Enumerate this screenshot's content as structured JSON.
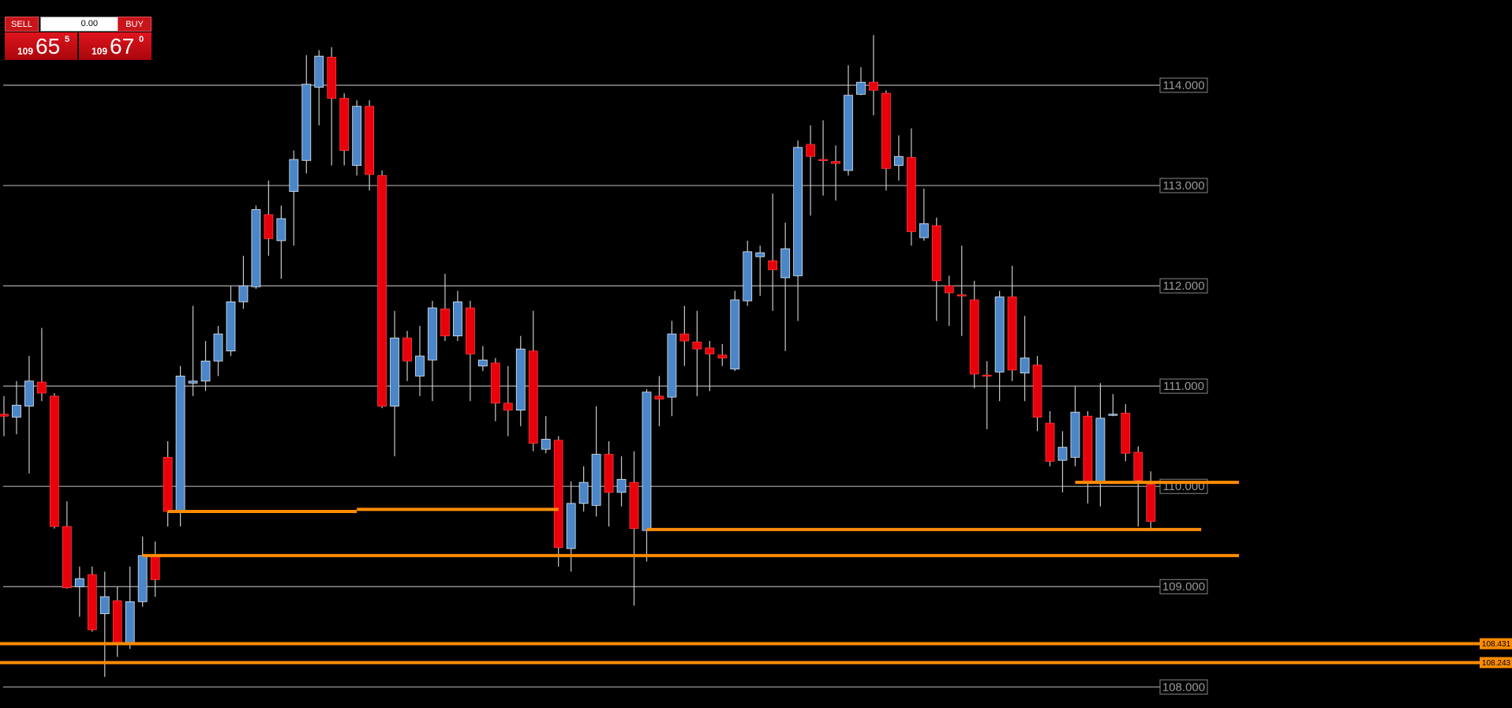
{
  "trade_panel": {
    "sell": "SELL",
    "buy": "BUY",
    "volume": "0.00",
    "bid": {
      "big": "109",
      "main": "65",
      "small": "5"
    },
    "ask": {
      "big": "109",
      "main": "67",
      "small": "0"
    }
  },
  "chart_data": {
    "type": "candlestick",
    "up_color": "#4a86c8",
    "down_color": "#e8000b",
    "wick_color": "#c8c8c8",
    "level_color": "#ff8c00",
    "grid": true,
    "ylim": [
      107.79,
      114.85
    ],
    "yticks": [
      {
        "value": 108,
        "label": "108.000"
      },
      {
        "value": 109,
        "label": "109.000"
      },
      {
        "value": 110,
        "label": "110.000"
      },
      {
        "value": 111,
        "label": "111.000"
      },
      {
        "value": 112,
        "label": "112.000"
      },
      {
        "value": 113,
        "label": "113.000"
      },
      {
        "value": 114,
        "label": "114.000"
      }
    ],
    "open": [
      110.72,
      110.69,
      110.8,
      111.04,
      110.9,
      109.6,
      109.0,
      109.12,
      108.73,
      108.86,
      108.43,
      108.85,
      109.3,
      110.29,
      109.75,
      111.03,
      111.05,
      111.25,
      111.35,
      111.84,
      111.99,
      112.71,
      112.45,
      112.94,
      113.25,
      113.98,
      114.28,
      113.87,
      113.2,
      113.79,
      113.1,
      110.8,
      111.48,
      111.1,
      111.26,
      111.77,
      111.5,
      111.78,
      111.2,
      111.23,
      110.83,
      110.76,
      111.35,
      110.37,
      110.46,
      109.38,
      109.83,
      109.81,
      110.32,
      109.94,
      110.04,
      109.56,
      110.9,
      110.89,
      111.52,
      111.44,
      111.38,
      111.31,
      111.17,
      111.85,
      112.29,
      112.25,
      112.08,
      112.1,
      113.41,
      113.26,
      113.24,
      113.15,
      113.91,
      114.03,
      113.92,
      113.2,
      113.28,
      112.48,
      112.6,
      112.0,
      111.91,
      111.86,
      111.11,
      111.14,
      111.89,
      111.13,
      111.21,
      110.63,
      110.26,
      110.29,
      110.7,
      110.04,
      110.71,
      110.73,
      110.34,
      110.02
    ],
    "high": [
      110.9,
      111.05,
      111.3,
      111.58,
      110.93,
      109.85,
      109.2,
      109.2,
      109.15,
      109.0,
      109.2,
      109.5,
      109.45,
      110.45,
      111.2,
      111.8,
      111.45,
      111.6,
      112.0,
      112.3,
      112.8,
      113.05,
      112.8,
      113.35,
      114.3,
      114.35,
      114.38,
      113.92,
      113.85,
      113.85,
      113.15,
      111.75,
      111.55,
      111.6,
      111.85,
      112.12,
      111.95,
      111.85,
      111.4,
      111.28,
      111.2,
      111.5,
      111.75,
      110.7,
      110.5,
      110.05,
      110.2,
      110.8,
      110.45,
      110.3,
      110.35,
      110.97,
      111.1,
      111.65,
      111.8,
      111.75,
      111.45,
      111.42,
      111.95,
      112.45,
      112.4,
      112.92,
      112.63,
      113.45,
      113.6,
      113.65,
      113.4,
      114.2,
      114.18,
      114.5,
      113.95,
      113.5,
      113.57,
      112.97,
      112.68,
      112.1,
      112.4,
      112.05,
      111.25,
      111.95,
      112.2,
      111.7,
      111.3,
      110.75,
      110.55,
      111.0,
      110.75,
      111.03,
      110.92,
      110.82,
      110.4,
      110.15
    ],
    "low": [
      110.5,
      110.52,
      110.13,
      110.85,
      109.58,
      108.98,
      108.7,
      108.55,
      108.1,
      108.3,
      108.38,
      108.8,
      108.9,
      109.6,
      109.6,
      110.9,
      110.95,
      111.1,
      111.3,
      111.77,
      111.97,
      112.3,
      112.07,
      112.4,
      113.12,
      113.6,
      113.2,
      113.2,
      113.1,
      112.95,
      110.78,
      110.3,
      111.05,
      110.9,
      110.85,
      111.45,
      111.45,
      110.85,
      111.15,
      110.65,
      110.5,
      110.6,
      110.35,
      110.33,
      109.2,
      109.15,
      109.75,
      109.7,
      109.6,
      109.8,
      108.81,
      109.25,
      110.6,
      110.7,
      111.2,
      110.9,
      110.95,
      111.2,
      111.15,
      111.8,
      111.9,
      111.75,
      111.35,
      111.65,
      112.7,
      112.9,
      112.85,
      113.1,
      113.9,
      113.7,
      112.95,
      113.05,
      112.4,
      112.45,
      111.65,
      111.6,
      111.5,
      110.98,
      110.57,
      110.85,
      111.05,
      110.85,
      110.55,
      110.2,
      109.94,
      110.2,
      109.83,
      109.8,
      110.7,
      110.25,
      109.6,
      109.58
    ],
    "close": [
      110.7,
      110.81,
      111.05,
      110.93,
      109.6,
      108.99,
      109.08,
      108.57,
      108.9,
      108.43,
      108.85,
      109.31,
      109.07,
      109.75,
      111.1,
      111.05,
      111.25,
      111.52,
      111.84,
      112.0,
      112.76,
      112.47,
      112.67,
      113.26,
      114.01,
      114.29,
      113.87,
      113.35,
      113.79,
      113.11,
      110.8,
      111.48,
      111.25,
      111.3,
      111.78,
      111.5,
      111.84,
      111.32,
      111.26,
      110.83,
      110.76,
      111.37,
      110.43,
      110.47,
      109.39,
      109.83,
      110.04,
      110.32,
      109.94,
      110.07,
      109.58,
      110.94,
      110.87,
      111.52,
      111.45,
      111.37,
      111.32,
      111.28,
      111.86,
      112.34,
      112.33,
      112.16,
      112.37,
      113.38,
      113.29,
      113.25,
      113.22,
      113.9,
      114.03,
      113.95,
      113.17,
      113.29,
      112.54,
      112.62,
      112.05,
      111.93,
      111.9,
      111.12,
      111.1,
      111.89,
      111.16,
      111.28,
      110.69,
      110.25,
      110.39,
      110.74,
      110.04,
      110.68,
      110.72,
      110.33,
      110.06,
      109.65
    ],
    "levels": [
      {
        "value": 109.75,
        "x": [
          13,
          28
        ]
      },
      {
        "value": 109.77,
        "x": [
          28,
          44
        ]
      },
      {
        "value": 109.57,
        "x": [
          51,
          95
        ]
      },
      {
        "value": 109.31,
        "x": [
          11,
          98
        ]
      },
      {
        "value": 110.04,
        "x": [
          85,
          98
        ]
      },
      {
        "value": 108.431,
        "label": "108.431"
      },
      {
        "value": 108.243,
        "label": "108.243"
      }
    ]
  }
}
